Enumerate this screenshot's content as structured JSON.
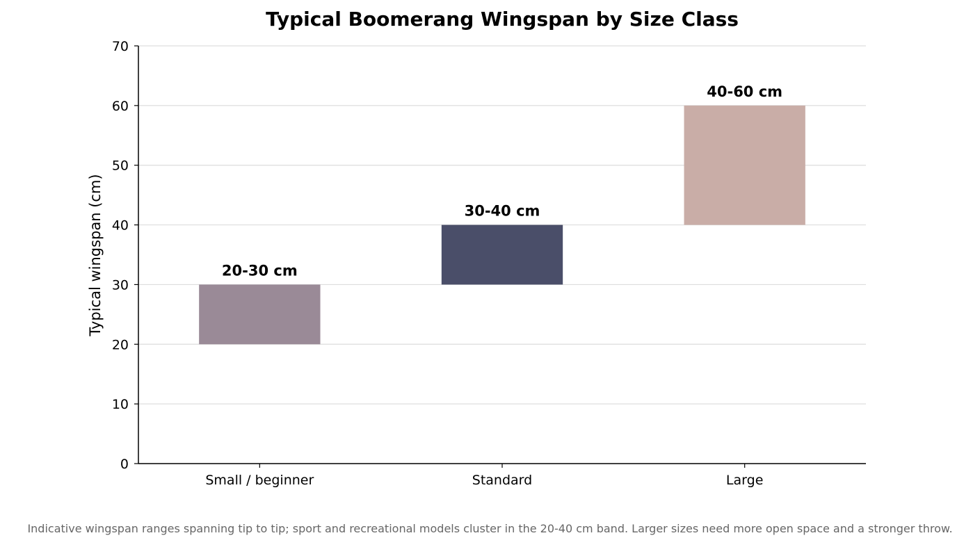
{
  "chart_data": {
    "type": "bar",
    "title": "Typical Boomerang Wingspan by Size Class",
    "ylabel": "Typical wingspan (cm)",
    "xlabel": "",
    "ylim": [
      0,
      70
    ],
    "yticks": [
      0,
      10,
      20,
      30,
      40,
      50,
      60,
      70
    ],
    "grid": "horizontal",
    "categories": [
      "Small / beginner",
      "Standard",
      "Large"
    ],
    "bars": [
      {
        "category": "Small / beginner",
        "low": 20,
        "high": 30,
        "label": "20-30 cm",
        "color": "#9a8a97"
      },
      {
        "category": "Standard",
        "low": 30,
        "high": 40,
        "label": "30-40 cm",
        "color": "#4a4e69"
      },
      {
        "category": "Large",
        "low": 40,
        "high": 60,
        "label": "40-60 cm",
        "color": "#c9ada7"
      }
    ],
    "footnote": "Indicative wingspan ranges spanning tip to tip; sport and recreational models cluster in the 20-40 cm band. Larger sizes need more open space and a stronger throw."
  }
}
